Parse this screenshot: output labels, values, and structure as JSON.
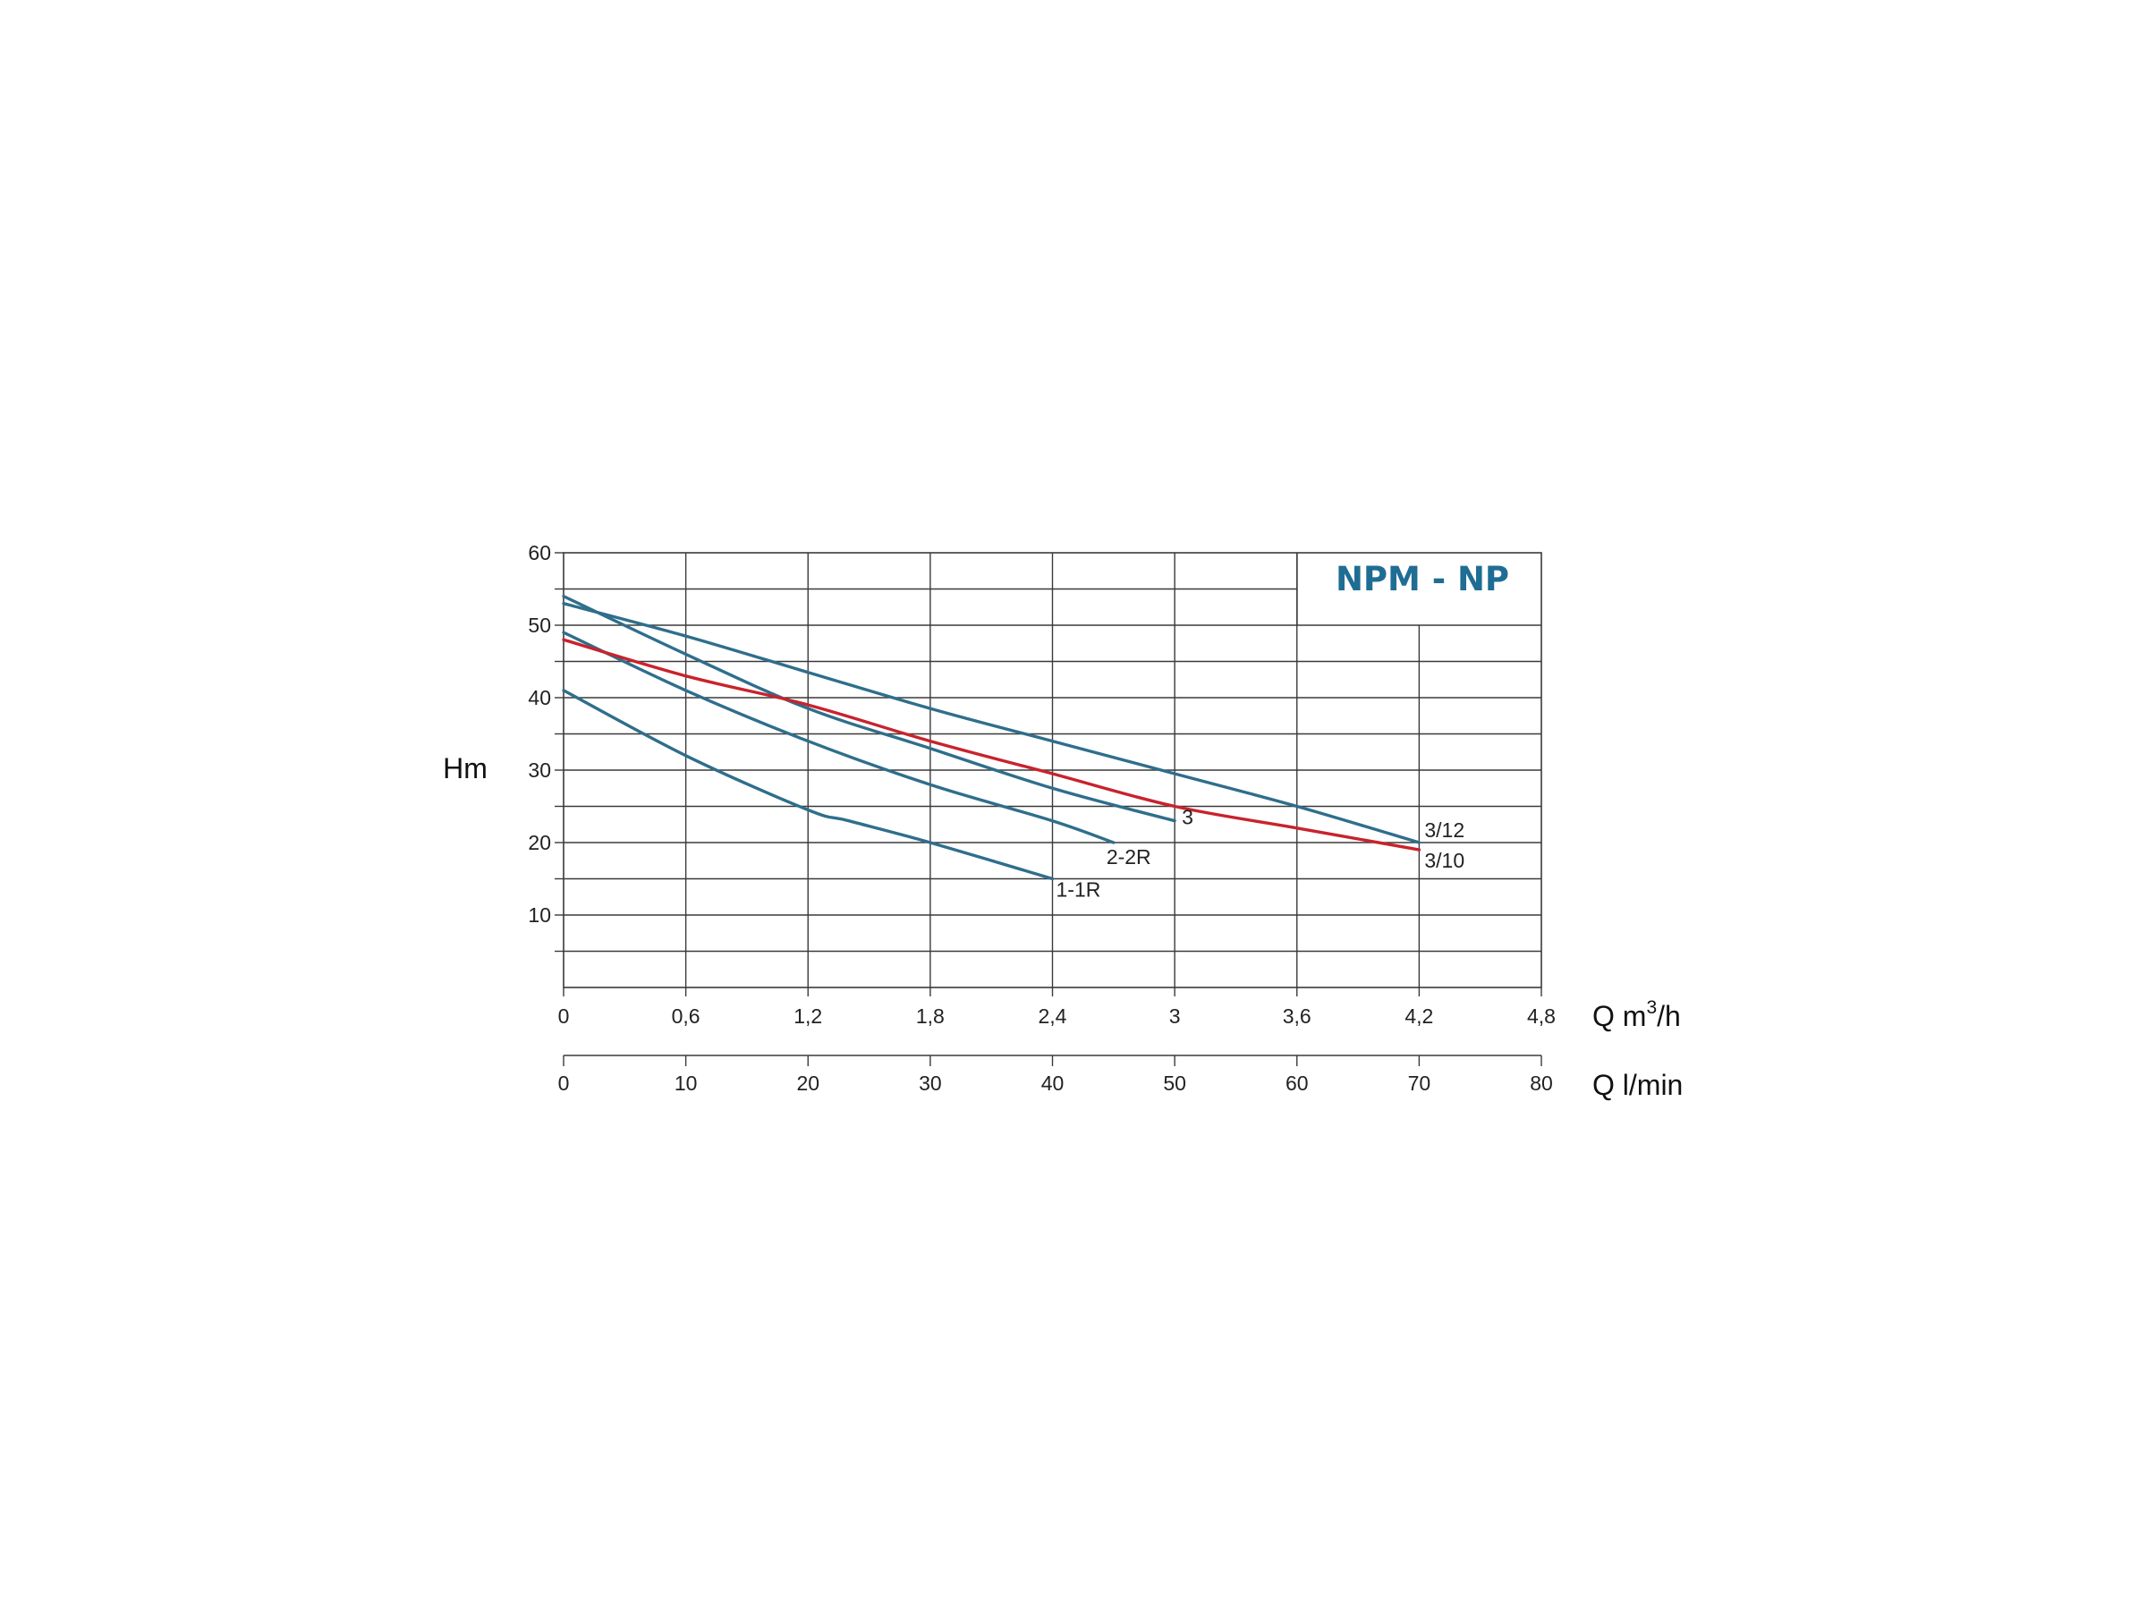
{
  "chart_data": {
    "type": "line",
    "title": "NPM - NP",
    "title_color": "#1f6d94",
    "ylabel": "Hm",
    "xlabel": "Q m3/h",
    "xlabel_base": "Q m",
    "xlabel_sup": "3",
    "xlabel_tail": "/h",
    "x2label": "Q l/min",
    "ylim": [
      0,
      60
    ],
    "xlim": [
      0,
      4.8
    ],
    "x2lim": [
      0,
      80
    ],
    "grid": true,
    "y_ticks": [
      {
        "value": 10,
        "label": "10"
      },
      {
        "value": 20,
        "label": "20"
      },
      {
        "value": 30,
        "label": "30"
      },
      {
        "value": 40,
        "label": "40"
      },
      {
        "value": 50,
        "label": "50"
      },
      {
        "value": 60,
        "label": "60"
      }
    ],
    "x_ticks": [
      {
        "value": 0,
        "label": "0"
      },
      {
        "value": 0.6,
        "label": "0,6"
      },
      {
        "value": 1.2,
        "label": "1,2"
      },
      {
        "value": 1.8,
        "label": "1,8"
      },
      {
        "value": 2.4,
        "label": "2,4"
      },
      {
        "value": 3.0,
        "label": "3"
      },
      {
        "value": 3.6,
        "label": "3,6"
      },
      {
        "value": 4.2,
        "label": "4,2"
      },
      {
        "value": 4.8,
        "label": "4,8"
      }
    ],
    "x2_ticks": [
      {
        "value": 0,
        "label": "0"
      },
      {
        "value": 10,
        "label": "10"
      },
      {
        "value": 20,
        "label": "20"
      },
      {
        "value": 30,
        "label": "30"
      },
      {
        "value": 40,
        "label": "40"
      },
      {
        "value": 50,
        "label": "50"
      },
      {
        "value": 60,
        "label": "60"
      },
      {
        "value": 70,
        "label": "70"
      },
      {
        "value": 80,
        "label": "80"
      }
    ],
    "series": [
      {
        "name": "1-1R",
        "color": "#2f6e8c",
        "x": [
          0,
          0.6,
          1.2,
          1.4,
          1.8,
          2.4
        ],
        "y": [
          41,
          32,
          24.5,
          23,
          20,
          15
        ]
      },
      {
        "name": "2-2R",
        "color": "#2f6e8c",
        "x": [
          0,
          0.6,
          1.2,
          1.8,
          2.4,
          2.7
        ],
        "y": [
          49,
          41,
          34,
          28,
          23,
          20
        ]
      },
      {
        "name": "3",
        "color": "#2f6e8c",
        "x": [
          0,
          0.6,
          1.2,
          1.8,
          2.4,
          3.0
        ],
        "y": [
          54,
          46,
          38.5,
          33,
          27.5,
          23
        ]
      },
      {
        "name": "3/10",
        "color": "#c8232c",
        "x": [
          0,
          0.6,
          1.2,
          1.8,
          2.4,
          3.0,
          3.6,
          4.2
        ],
        "y": [
          48,
          43,
          39,
          34,
          29.5,
          25,
          22,
          19
        ]
      },
      {
        "name": "3/12",
        "color": "#2f6e8c",
        "x": [
          0,
          0.6,
          1.2,
          1.8,
          2.4,
          3.0,
          3.6,
          4.2
        ],
        "y": [
          53,
          48.5,
          43.5,
          38.5,
          34,
          29.5,
          25,
          20
        ]
      }
    ]
  }
}
